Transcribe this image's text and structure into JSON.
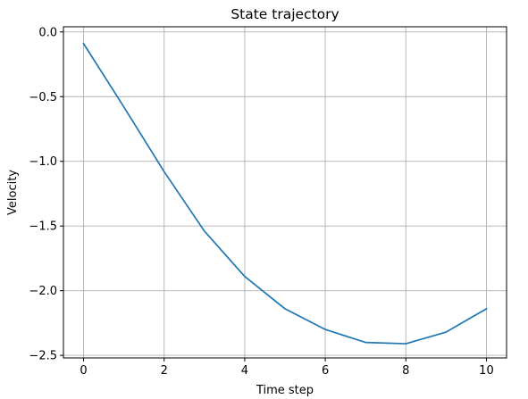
{
  "chart_data": {
    "type": "line",
    "title": "State trajectory",
    "xlabel": "Time step",
    "ylabel": "Velocity",
    "xlim": [
      -0.5,
      10.5
    ],
    "ylim": [
      -2.52,
      0.04
    ],
    "xticks": [
      0,
      2,
      4,
      6,
      8,
      10
    ],
    "yticks": [
      0.0,
      -0.5,
      -1.0,
      -1.5,
      -2.0,
      -2.5
    ],
    "xtick_labels": [
      "0",
      "2",
      "4",
      "6",
      "8",
      "10"
    ],
    "ytick_labels": [
      "0.0",
      "−0.5",
      "−1.0",
      "−1.5",
      "−2.0",
      "−2.5"
    ],
    "grid": true,
    "series": [
      {
        "color": "#1f77b4",
        "x": [
          0,
          1,
          2,
          3,
          4,
          5,
          6,
          7,
          8,
          9,
          10
        ],
        "y": [
          -0.09,
          -0.58,
          -1.08,
          -1.54,
          -1.89,
          -2.14,
          -2.3,
          -2.4,
          -2.41,
          -2.32,
          -2.14
        ]
      }
    ]
  }
}
